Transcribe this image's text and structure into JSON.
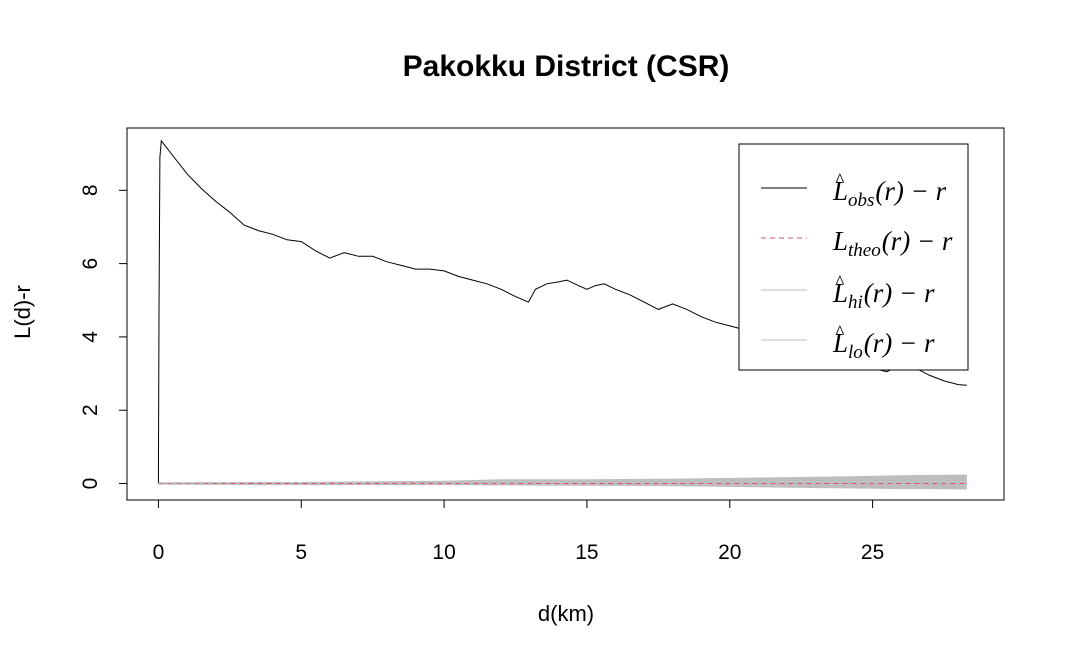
{
  "chart_data": {
    "type": "line",
    "title": "Pakokku District (CSR)",
    "xlabel": "d(km)",
    "ylabel": "L(d)-r",
    "xlim": [
      -1.1,
      29.6
    ],
    "ylim": [
      -0.45,
      9.7
    ],
    "xticks": [
      0,
      5,
      10,
      15,
      20,
      25
    ],
    "yticks": [
      0,
      2,
      4,
      6,
      8
    ],
    "grid": false,
    "legend_position": "top-right",
    "series": [
      {
        "name": "obs",
        "color": "#000000",
        "style": "solid",
        "x": [
          0,
          0.02,
          0.05,
          0.1,
          0.3,
          0.5,
          1.0,
          1.5,
          2.0,
          2.5,
          3.0,
          3.5,
          4.0,
          4.5,
          5.0,
          5.5,
          6.0,
          6.5,
          7.0,
          7.5,
          8.0,
          8.5,
          9.0,
          9.5,
          10.0,
          10.5,
          11.0,
          11.5,
          12.0,
          12.5,
          12.95,
          13.2,
          13.6,
          14.0,
          14.3,
          14.7,
          15.0,
          15.3,
          15.6,
          16.0,
          16.5,
          17.0,
          17.5,
          18.0,
          18.5,
          19.0,
          19.5,
          20.0,
          20.5,
          21.0,
          21.5,
          22.0,
          22.5,
          23.0,
          23.5,
          24.0,
          24.5,
          25.0,
          25.5,
          26.0,
          26.5,
          27.0,
          27.5,
          28.0,
          28.3
        ],
        "y": [
          0,
          4.7,
          8.9,
          9.35,
          9.15,
          8.95,
          8.45,
          8.05,
          7.7,
          7.4,
          7.05,
          6.9,
          6.8,
          6.65,
          6.6,
          6.35,
          6.15,
          6.3,
          6.2,
          6.2,
          6.05,
          5.95,
          5.85,
          5.85,
          5.8,
          5.65,
          5.55,
          5.45,
          5.3,
          5.1,
          4.95,
          5.3,
          5.45,
          5.5,
          5.55,
          5.4,
          5.3,
          5.4,
          5.45,
          5.3,
          5.15,
          4.95,
          4.75,
          4.9,
          4.75,
          4.55,
          4.4,
          4.3,
          4.2,
          4.05,
          3.85,
          3.7,
          3.6,
          3.55,
          3.45,
          3.4,
          3.35,
          3.15,
          3.05,
          3.25,
          3.15,
          2.95,
          2.8,
          2.7,
          2.68
        ]
      },
      {
        "name": "theo",
        "color": "#DF536B",
        "style": "dashed",
        "x": [
          0,
          28.3
        ],
        "y": [
          0,
          0
        ]
      },
      {
        "name": "hi",
        "color": "#BEBEBE",
        "x": [
          0,
          5,
          10,
          12,
          15,
          18,
          20,
          22,
          24,
          25,
          26,
          27,
          28.3
        ],
        "y": [
          0.02,
          0.03,
          0.06,
          0.1,
          0.1,
          0.12,
          0.14,
          0.16,
          0.18,
          0.2,
          0.21,
          0.22,
          0.23
        ]
      },
      {
        "name": "lo",
        "color": "#BEBEBE",
        "x": [
          0,
          5,
          10,
          12,
          15,
          18,
          20,
          22,
          24,
          25,
          26,
          27,
          28.3
        ],
        "y": [
          -0.02,
          -0.03,
          -0.03,
          -0.04,
          -0.05,
          -0.06,
          -0.08,
          -0.1,
          -0.12,
          -0.13,
          -0.14,
          -0.14,
          -0.15
        ]
      }
    ],
    "legend": [
      {
        "base": "L",
        "hat": true,
        "sub": "obs",
        "tail": "(r) − r",
        "color": "#000000",
        "style": "solid"
      },
      {
        "base": "L",
        "hat": false,
        "sub": "theo",
        "tail": "(r) − r",
        "color": "#DF536B",
        "style": "dashed"
      },
      {
        "base": "L",
        "hat": true,
        "sub": "hi",
        "tail": "(r) − r",
        "color": "#BEBEBE",
        "style": "solid"
      },
      {
        "base": "L",
        "hat": true,
        "sub": "lo",
        "tail": "(r) − r",
        "color": "#BEBEBE",
        "style": "solid"
      }
    ]
  }
}
